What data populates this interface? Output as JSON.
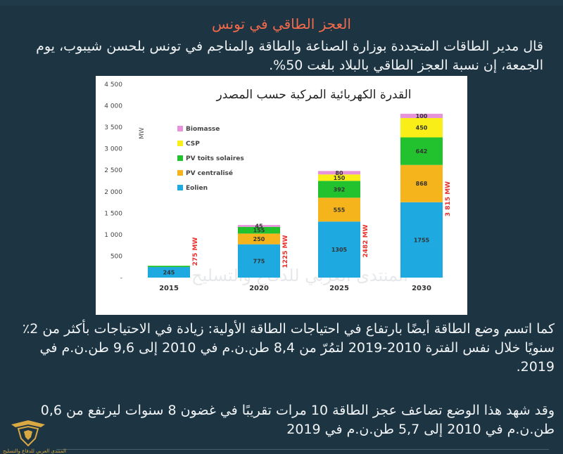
{
  "headline": "العجز الطاقي في تونس",
  "paragraph1": "قال مدير الطاقات المتجددة بوزارة الصناعة والطاقة والمناجم في تونس بلحسن شيبوب، يوم الجمعة، إن نسبة العجز الطاقي بالبلاد بلغت 50%.",
  "paragraph2": "كما اتسم وضع الطاقة أيضًا بارتفاع في احتياجات الطاقة الأولية: زيادة في الاحتياجات بأكثر من 2٪ سنويًا خلال نفس الفترة 2010-2019 لتمُرّ من 8,4 طن.ن.م في 2010 إلى 9,6 طن.ن.م في 2019.",
  "paragraph3": "وقد شهد هذا الوضع تضاعف عجز الطاقة 10 مرات تقريبًا في غضون 8 سنوات ليرتفع من 0,6 طن.ن.م في 2010 إلى 5,7 طن.ن.م في 2019",
  "logo_caption": "المنتدى العربي للدفاع والتسليح",
  "chart_data": {
    "type": "bar",
    "stacked": true,
    "title": "القدرة الكهربائية المركبة حسب المصدر",
    "ylabel": "MW",
    "ylim": [
      0,
      4500
    ],
    "yticks": [
      0,
      500,
      1000,
      1500,
      2000,
      2500,
      3000,
      3500,
      4000,
      4500
    ],
    "ytick_labels": [
      "-",
      "500",
      "1 000",
      "1 500",
      "2 000",
      "2 500",
      "3 000",
      "3 500",
      "4 000",
      "4 500"
    ],
    "categories": [
      "2015",
      "2020",
      "2025",
      "2030"
    ],
    "legend_position": "top-left",
    "series": [
      {
        "name": "Eolien",
        "color": "#1fa9e1",
        "values": [
          245,
          775,
          1305,
          1755
        ],
        "labels": [
          "245",
          "775",
          "1305",
          "1755"
        ]
      },
      {
        "name": "PV centralisé",
        "color": "#f5b41c",
        "values": [
          0,
          250,
          555,
          868
        ],
        "labels": [
          "",
          "250",
          "555",
          "868"
        ]
      },
      {
        "name": "PV toits solaires",
        "color": "#22c22e",
        "values": [
          30,
          155,
          392,
          642
        ],
        "labels": [
          "",
          "155",
          "392",
          "642"
        ]
      },
      {
        "name": "CSP",
        "color": "#f9ee17",
        "values": [
          0,
          0,
          150,
          450
        ],
        "labels": [
          "",
          "",
          "150",
          "450"
        ]
      },
      {
        "name": "Biomasse",
        "color": "#e793d9",
        "values": [
          0,
          45,
          80,
          100
        ],
        "labels": [
          "",
          "45",
          "80",
          "100"
        ]
      }
    ],
    "totals": [
      "275 MW",
      "1225 MW",
      "2482 MW",
      "3 815 MW"
    ],
    "watermark": "المنتدى العربي للدفاع والتسليح"
  }
}
